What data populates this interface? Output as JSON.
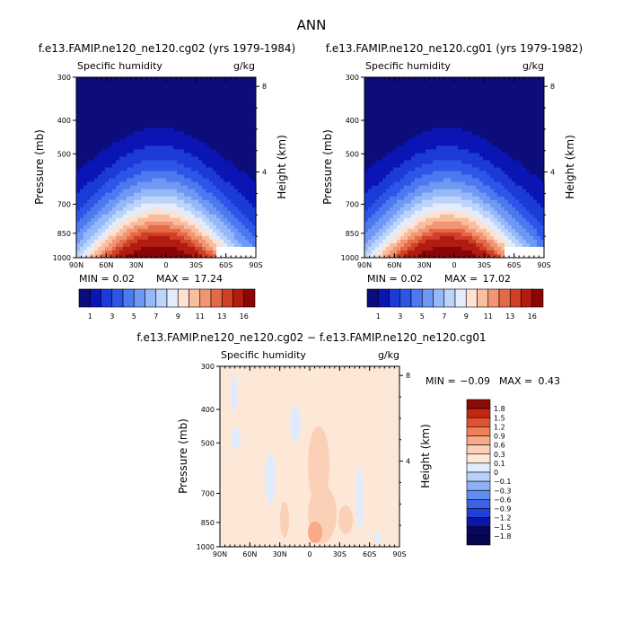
{
  "figure": {
    "title": "ANN"
  },
  "colors": {
    "abs": [
      "#0c0c7a",
      "#0a15b4",
      "#1c3bd6",
      "#2f55e8",
      "#4c78f0",
      "#6f98f5",
      "#95b8f8",
      "#bcd3fa",
      "#e3ecfd",
      "#fde2d2",
      "#f9bd9f",
      "#f39572",
      "#e46a47",
      "#cf4027",
      "#b11b10",
      "#8a0606"
    ],
    "diff": [
      "#07075e",
      "#0b16a9",
      "#1f3fd8",
      "#3a63ea",
      "#5f8ef0",
      "#8db1f6",
      "#b9d1fb",
      "#e0ecfd",
      "#fde8d8",
      "#fbd0b6",
      "#f8aa87",
      "#f07f58",
      "#e1532f",
      "#c22714",
      "#8e0a06"
    ]
  },
  "chart_data": [
    {
      "type": "heatmap",
      "panel": "top-left",
      "title": "f.e13.FAMIP.ne120_ne120.cg02 (yrs 1979-1984)",
      "subtitle_left": "Specific humidity",
      "subtitle_right": "g/kg",
      "ylabel": "Pressure (mb)",
      "ylabel_right": "Height (km)",
      "x_ticks": [
        "90N",
        "60N",
        "30N",
        "0",
        "30S",
        "60S",
        "90S"
      ],
      "y_ticks": [
        300,
        400,
        500,
        700,
        850,
        1000
      ],
      "right_ticks": [
        8,
        4
      ],
      "min_label": "MIN =",
      "min": "0.02",
      "max_label": "MAX =",
      "max": "17.24",
      "colorbar_labels": [
        "1",
        "3",
        "5",
        "7",
        "9",
        "11",
        "13",
        "16"
      ]
    },
    {
      "type": "heatmap",
      "panel": "top-right",
      "title": "f.e13.FAMIP.ne120_ne120.cg01 (yrs 1979-1982)",
      "subtitle_left": "Specific humidity",
      "subtitle_right": "g/kg",
      "ylabel": "Pressure (mb)",
      "ylabel_right": "Height (km)",
      "x_ticks": [
        "90N",
        "60N",
        "30N",
        "0",
        "30S",
        "60S",
        "90S"
      ],
      "y_ticks": [
        300,
        400,
        500,
        700,
        850,
        1000
      ],
      "right_ticks": [
        8,
        4
      ],
      "min_label": "MIN =",
      "min": "0.02",
      "max_label": "MAX =",
      "max": "17.02",
      "colorbar_labels": [
        "1",
        "3",
        "5",
        "7",
        "9",
        "11",
        "13",
        "16"
      ]
    },
    {
      "type": "heatmap",
      "panel": "bottom-difference",
      "title": "f.e13.FAMIP.ne120_ne120.cg02 − f.e13.FAMIP.ne120_ne120.cg01",
      "subtitle_left": "Specific humidity",
      "subtitle_right": "g/kg",
      "ylabel": "Pressure (mb)",
      "ylabel_right": "Height (km)",
      "x_ticks": [
        "90N",
        "60N",
        "30N",
        "0",
        "30S",
        "60S",
        "90S"
      ],
      "y_ticks": [
        300,
        400,
        500,
        700,
        850,
        1000
      ],
      "right_ticks": [
        8,
        4
      ],
      "min_label": "MIN =",
      "min": "−0.09",
      "max_label": "MAX =",
      "max": "0.43",
      "colorbar_labels": [
        "1.8",
        "1.5",
        "1.2",
        "0.9",
        "0.6",
        "0.3",
        "0.1",
        "0",
        "−0.1",
        "−0.3",
        "−0.6",
        "−0.9",
        "−1.2",
        "−1.5",
        "−1.8"
      ]
    }
  ]
}
